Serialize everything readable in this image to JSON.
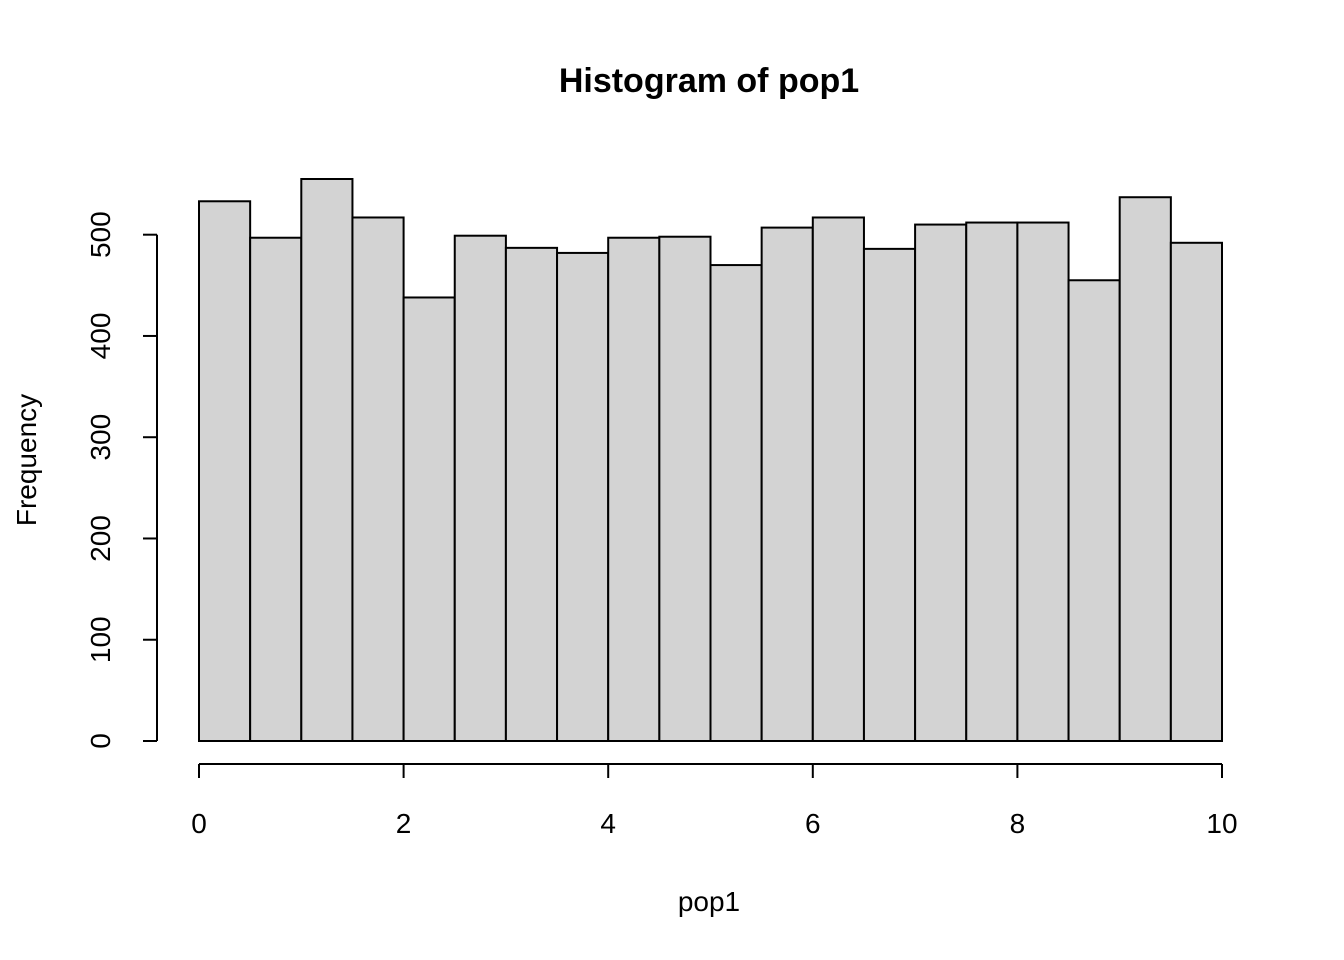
{
  "chart_data": {
    "type": "bar",
    "title": "Histogram of pop1",
    "xlabel": "pop1",
    "ylabel": "Frequency",
    "bin_edges": [
      0,
      0.5,
      1,
      1.5,
      2,
      2.5,
      3,
      3.5,
      4,
      4.5,
      5,
      5.5,
      6,
      6.5,
      7,
      7.5,
      8,
      8.5,
      9,
      9.5,
      10
    ],
    "values": [
      533,
      497,
      555,
      517,
      438,
      499,
      487,
      482,
      497,
      498,
      470,
      507,
      517,
      486,
      510,
      512,
      512,
      455,
      537,
      492
    ],
    "xlim": [
      0,
      10
    ],
    "ylim": [
      0,
      555
    ],
    "x_ticks": [
      0,
      2,
      4,
      6,
      8,
      10
    ],
    "y_ticks": [
      0,
      100,
      200,
      300,
      400,
      500
    ],
    "grid": false,
    "bar_color": "#d3d3d3",
    "edge_color": "#000000"
  }
}
